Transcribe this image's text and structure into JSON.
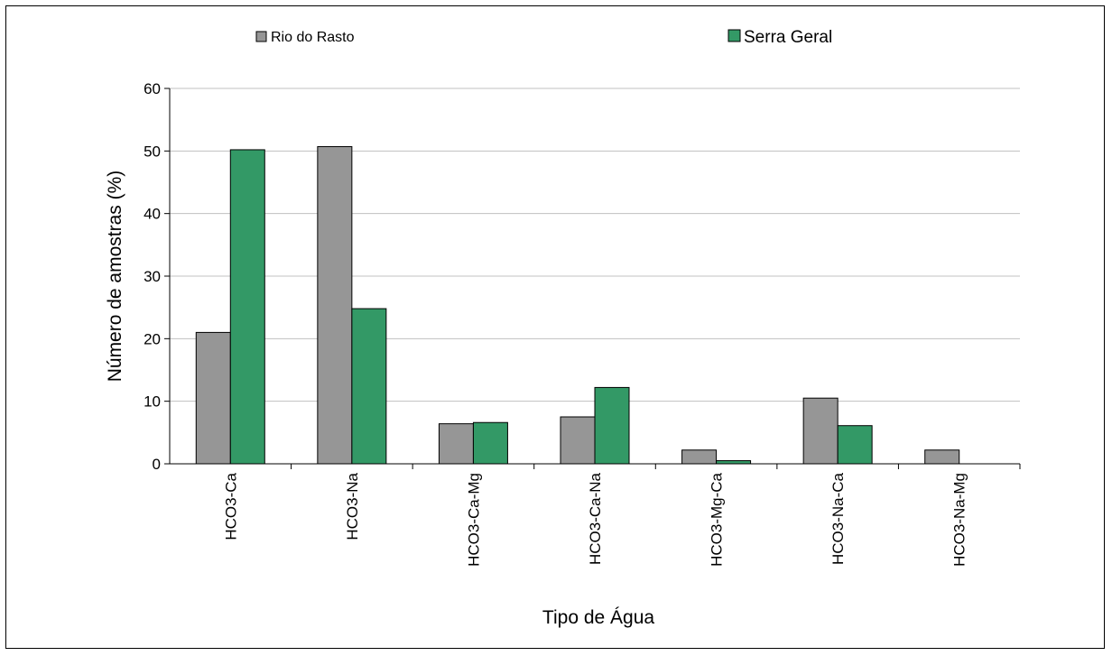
{
  "chart_data": {
    "type": "bar",
    "ylabel": "Número de amostras (%)",
    "xlabel": "Tipo de Água",
    "ylim": [
      0,
      60
    ],
    "yticks": [
      0,
      10,
      20,
      30,
      40,
      50,
      60
    ],
    "grid": true,
    "legend_position": "top",
    "categories": [
      "HCO3-Ca",
      "HCO3-Na",
      "HCO3-Ca-Mg",
      "HCO3-Ca-Na",
      "HCO3-Mg-Ca",
      "HCO3-Na-Ca",
      "HCO3-Na-Mg"
    ],
    "series": [
      {
        "name": "Rio do Rasto",
        "color": "#969696",
        "values": [
          21,
          50.7,
          6.4,
          7.5,
          2.2,
          10.5,
          2.2
        ]
      },
      {
        "name": "Serra Geral",
        "color": "#339966",
        "values": [
          50.2,
          24.8,
          6.6,
          12.2,
          0.5,
          6.1,
          0
        ]
      }
    ]
  }
}
